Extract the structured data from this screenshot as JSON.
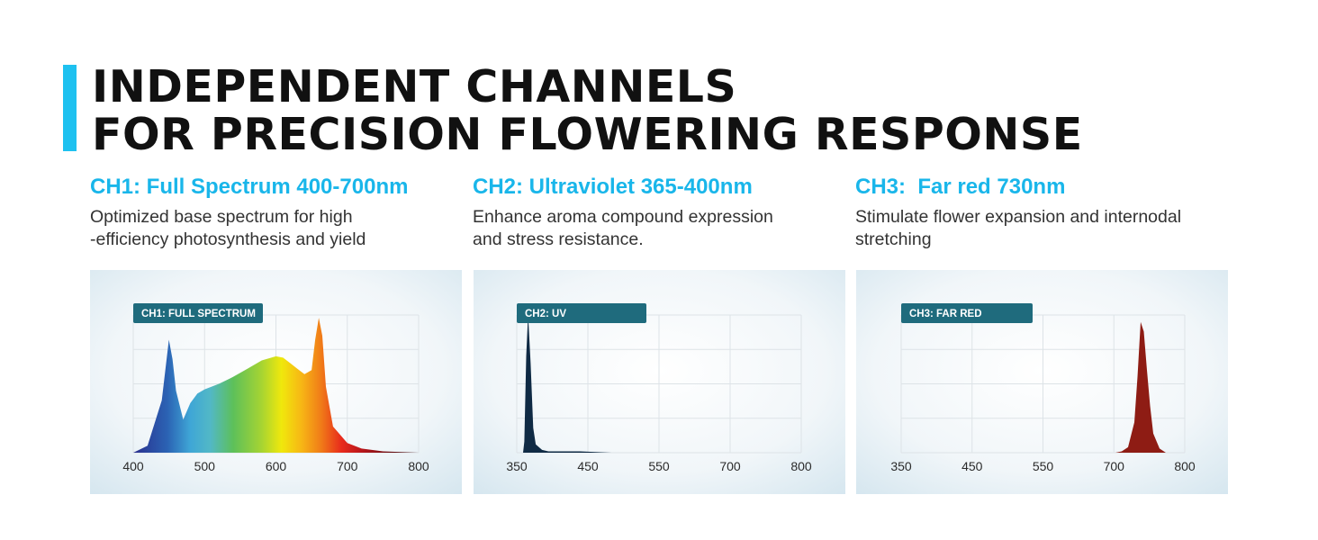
{
  "header": {
    "title_line1": "INDEPENDENT CHANNELS",
    "title_line2": "FOR PRECISION FLOWERING RESPONSE",
    "accent_color": "#1ec1f0"
  },
  "channels": [
    {
      "title": "CH1: Full Spectrum 400-700nm",
      "description": "Optimized base spectrum for high\n-efficiency photosynthesis and yield"
    },
    {
      "title": "CH2: Ultraviolet 365-400nm",
      "description": "Enhance aroma compound expression\nand stress resistance."
    },
    {
      "title": "CH3:  Far red 730nm",
      "description": "Stimulate flower expansion and internodal\nstretching"
    }
  ],
  "colors": {
    "title_blue": "#19b6ea",
    "label_teal": "#1f6b7d",
    "uv_fill": "#0f2a44",
    "far_red_fill": "#8e1c14"
  },
  "chart_data": [
    {
      "type": "area",
      "label": "CH1: FULL SPECTRUM",
      "xticks": [
        "400",
        "500",
        "600",
        "700",
        "800"
      ],
      "xlim": [
        400,
        800
      ],
      "ylim": [
        0,
        1
      ],
      "grid": true,
      "fill": "rainbow",
      "x": [
        400,
        420,
        440,
        450,
        455,
        460,
        470,
        480,
        490,
        500,
        520,
        540,
        560,
        580,
        600,
        610,
        620,
        630,
        640,
        650,
        655,
        660,
        665,
        670,
        680,
        700,
        720,
        750,
        800
      ],
      "y": [
        0.0,
        0.05,
        0.38,
        0.82,
        0.68,
        0.45,
        0.24,
        0.36,
        0.43,
        0.46,
        0.5,
        0.55,
        0.61,
        0.67,
        0.7,
        0.69,
        0.65,
        0.61,
        0.57,
        0.6,
        0.82,
        0.98,
        0.85,
        0.48,
        0.19,
        0.07,
        0.03,
        0.01,
        0.0
      ]
    },
    {
      "type": "area",
      "label": "CH2: UV",
      "xticks": [
        "350",
        "450",
        "550",
        "700",
        "800"
      ],
      "xlim": [
        350,
        800
      ],
      "ylim": [
        0,
        1
      ],
      "grid": true,
      "fill_color": "#0f2a44",
      "x": [
        350,
        360,
        362,
        365,
        368,
        372,
        376,
        380,
        390,
        400,
        450,
        500,
        800
      ],
      "y": [
        0.0,
        0.0,
        0.08,
        0.7,
        1.0,
        0.65,
        0.18,
        0.06,
        0.02,
        0.01,
        0.01,
        0.0,
        0.0
      ]
    },
    {
      "type": "area",
      "label": "CH3: FAR RED",
      "xticks": [
        "350",
        "450",
        "550",
        "700",
        "800"
      ],
      "xlim": [
        350,
        800
      ],
      "ylim": [
        0,
        1
      ],
      "grid": true,
      "fill_color": "#8e1c14",
      "x": [
        350,
        690,
        700,
        710,
        720,
        725,
        730,
        735,
        740,
        745,
        750,
        760,
        770,
        800
      ],
      "y": [
        0.0,
        0.0,
        0.01,
        0.04,
        0.22,
        0.55,
        0.95,
        0.88,
        0.6,
        0.34,
        0.14,
        0.03,
        0.0,
        0.0
      ]
    }
  ]
}
